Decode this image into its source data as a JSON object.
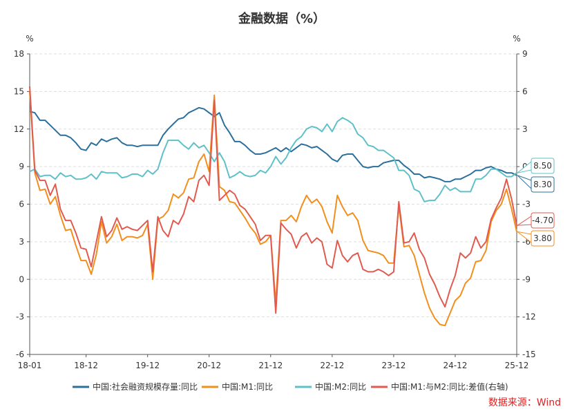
{
  "chart_data": {
    "type": "line",
    "title": "金融数据（%）",
    "source": "数据来源：Wind",
    "left_axis": {
      "unit": "%",
      "min": -6,
      "max": 18,
      "ticks": [
        -6,
        -3,
        0,
        3,
        6,
        9,
        12,
        15,
        18
      ]
    },
    "right_axis": {
      "unit": "%",
      "min": -15,
      "max": 9,
      "ticks": [
        -15,
        -12,
        -9,
        -6,
        -3,
        0,
        3,
        6,
        9
      ]
    },
    "x_tick_labels": [
      "18-01",
      "18-12",
      "19-12",
      "20-12",
      "21-12",
      "22-12",
      "23-12",
      "24-12",
      "25-12"
    ],
    "x_tick_index": [
      0,
      11,
      23,
      35,
      47,
      59,
      71,
      83,
      95
    ],
    "grid": "horizontal-dashed",
    "legend_position": "bottom",
    "series": [
      {
        "name": "中国:社会融资规模存量:同比",
        "color": "#2b6f9c",
        "axis": "left",
        "values": [
          13.4,
          13.3,
          12.7,
          12.7,
          12.3,
          11.9,
          11.5,
          11.5,
          11.3,
          10.9,
          10.4,
          10.3,
          10.9,
          10.7,
          11.2,
          11.0,
          11.2,
          11.3,
          10.9,
          10.7,
          10.7,
          10.6,
          10.7,
          10.7,
          10.7,
          10.7,
          11.5,
          12.0,
          12.4,
          12.8,
          12.9,
          13.3,
          13.5,
          13.7,
          13.6,
          13.3,
          13.0,
          13.3,
          12.3,
          11.7,
          11.0,
          11.0,
          10.7,
          10.3,
          10.0,
          10.0,
          10.1,
          10.3,
          10.5,
          10.2,
          10.5,
          10.2,
          10.5,
          10.8,
          10.7,
          10.5,
          10.6,
          10.3,
          10.0,
          9.6,
          9.4,
          9.9,
          10.0,
          10.0,
          9.5,
          9.0,
          8.9,
          9.0,
          9.0,
          9.3,
          9.4,
          9.5,
          9.5,
          9.1,
          8.8,
          8.4,
          8.4,
          8.1,
          8.2,
          8.1,
          8.0,
          7.8,
          7.8,
          8.0,
          8.0,
          8.2,
          8.4,
          8.7,
          8.7,
          8.9,
          9.0,
          8.8,
          8.7,
          8.5,
          8.5,
          8.3
        ]
      },
      {
        "name": "中国:M1:同比",
        "color": "#f28e1c",
        "axis": "left",
        "values": [
          15.0,
          8.5,
          7.1,
          7.2,
          6.0,
          6.6,
          5.1,
          3.9,
          4.0,
          2.7,
          1.5,
          1.5,
          0.4,
          2.0,
          4.6,
          2.9,
          3.4,
          4.4,
          3.1,
          3.4,
          3.4,
          3.3,
          3.5,
          4.4,
          0.0,
          4.8,
          5.0,
          5.5,
          6.8,
          6.5,
          6.9,
          8.0,
          8.1,
          9.4,
          10.0,
          8.6,
          14.7,
          7.4,
          7.1,
          6.2,
          6.1,
          5.5,
          4.9,
          4.2,
          3.7,
          2.8,
          3.0,
          3.5,
          -1.9,
          4.7,
          4.7,
          5.1,
          4.6,
          5.8,
          6.7,
          6.1,
          6.4,
          5.8,
          4.6,
          3.7,
          6.7,
          5.8,
          5.1,
          5.3,
          4.7,
          3.1,
          2.3,
          2.2,
          2.1,
          1.9,
          1.3,
          1.3,
          5.9,
          2.6,
          2.7,
          1.9,
          0.4,
          -1.1,
          -2.3,
          -3.1,
          -3.6,
          -3.7,
          -2.7,
          -1.7,
          -1.3,
          -0.3,
          0.1,
          1.4,
          1.5,
          2.3,
          4.6,
          5.5,
          6.0,
          7.2,
          5.6,
          3.8
        ]
      },
      {
        "name": "中国:M2:同比",
        "color": "#5ec0c8",
        "axis": "left",
        "values": [
          8.6,
          8.8,
          8.2,
          8.3,
          8.3,
          8.0,
          8.5,
          8.2,
          8.3,
          8.0,
          8.0,
          8.1,
          8.4,
          8.0,
          8.6,
          8.5,
          8.5,
          8.5,
          8.1,
          8.2,
          8.4,
          8.4,
          8.2,
          8.7,
          8.4,
          8.8,
          10.1,
          11.1,
          11.1,
          11.1,
          10.7,
          10.4,
          10.9,
          10.5,
          10.7,
          10.1,
          9.4,
          10.1,
          9.4,
          8.1,
          8.3,
          8.6,
          8.3,
          8.2,
          8.3,
          8.7,
          8.5,
          9.0,
          9.8,
          9.2,
          9.7,
          10.5,
          11.1,
          11.4,
          12.0,
          12.2,
          12.1,
          11.8,
          12.4,
          11.8,
          12.6,
          12.9,
          12.7,
          12.4,
          11.6,
          11.3,
          10.7,
          10.6,
          10.3,
          10.3,
          10.0,
          9.7,
          8.7,
          8.7,
          8.3,
          7.2,
          7.0,
          6.2,
          6.3,
          6.3,
          6.8,
          7.5,
          7.1,
          7.3,
          7.0,
          7.0,
          7.0,
          8.0,
          8.0,
          8.3,
          8.8,
          8.8,
          8.5,
          8.2,
          8.2,
          8.5
        ]
      },
      {
        "name": "中国:M1:与M2:同比:差值(右轴)",
        "color": "#e05a4f",
        "axis": "right",
        "values": [
          6.4,
          -0.3,
          -1.1,
          -1.1,
          -2.3,
          -1.4,
          -3.4,
          -4.3,
          -4.3,
          -5.3,
          -6.5,
          -6.6,
          -8.0,
          -6.0,
          -4.0,
          -5.6,
          -5.1,
          -4.1,
          -5.0,
          -4.8,
          -5.0,
          -5.1,
          -4.7,
          -4.3,
          -8.4,
          -4.0,
          -5.1,
          -5.6,
          -4.3,
          -4.6,
          -3.8,
          -2.4,
          -2.8,
          -1.1,
          -0.7,
          -1.5,
          5.3,
          -2.7,
          -2.3,
          -1.9,
          -2.2,
          -3.1,
          -3.4,
          -4.0,
          -4.6,
          -5.9,
          -5.5,
          -5.5,
          -11.7,
          -4.5,
          -5.0,
          -5.4,
          -6.5,
          -5.6,
          -5.3,
          -6.1,
          -5.7,
          -6.0,
          -7.8,
          -8.1,
          -5.9,
          -7.1,
          -7.6,
          -7.1,
          -6.9,
          -8.2,
          -8.4,
          -8.4,
          -8.2,
          -8.4,
          -8.7,
          -8.4,
          -2.8,
          -6.1,
          -6.0,
          -5.3,
          -6.6,
          -7.3,
          -8.6,
          -9.4,
          -10.4,
          -11.2,
          -9.8,
          -8.7,
          -6.9,
          -7.3,
          -6.9,
          -5.6,
          -6.5,
          -6.0,
          -4.2,
          -3.3,
          -2.5,
          -1.0,
          -2.6,
          -4.7
        ]
      }
    ],
    "end_labels": [
      {
        "series": 0,
        "text": "8.30"
      },
      {
        "series": 1,
        "text": "3.80"
      },
      {
        "series": 2,
        "text": "8.50"
      },
      {
        "series": 3,
        "text": "-4.70"
      }
    ]
  }
}
